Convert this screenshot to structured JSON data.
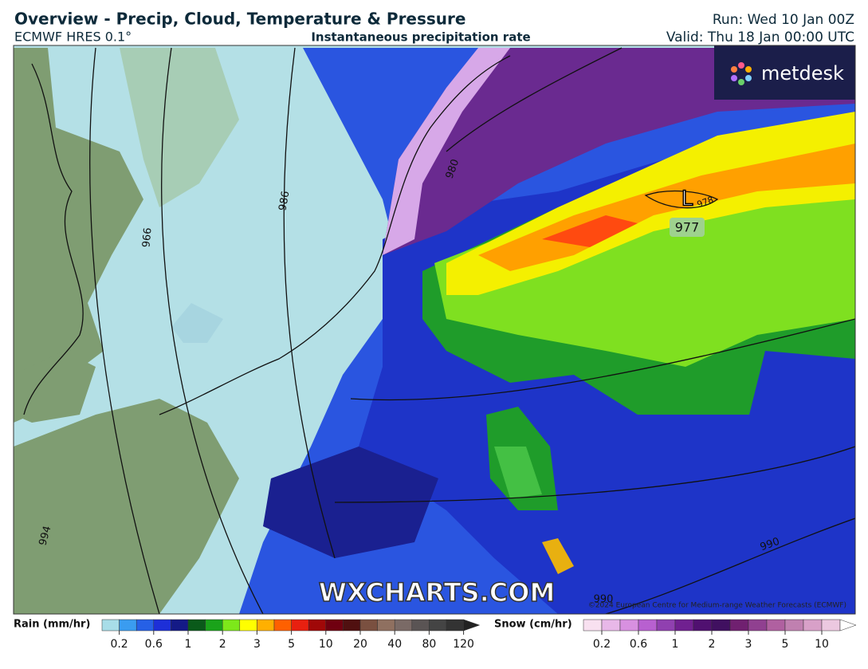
{
  "header": {
    "title": "Overview - Precip, Cloud, Temperature & Pressure",
    "model": "ECMWF HRES 0.1°",
    "panel": "Instantaneous precipitation rate",
    "run": "Run: Wed 10 Jan 00Z",
    "valid": "Valid: Thu 18 Jan 00:00 UTC"
  },
  "map": {
    "logo": "metdesk",
    "low_symbol": "L",
    "low_value": "977",
    "watermark": "WXCHARTS.COM",
    "copyright": "©2024 European Centre for Medium-range Weather Forecasts (ECMWF)",
    "isobars": [
      "986",
      "980",
      "966",
      "994",
      "990",
      "990",
      "978"
    ]
  },
  "legend": {
    "rain": {
      "label": "Rain (mm/hr)",
      "ticks": [
        "0.2",
        "0.6",
        "1",
        "2",
        "3",
        "5",
        "10",
        "20",
        "40",
        "80",
        "120"
      ]
    },
    "snow": {
      "label": "Snow (cm/hr)",
      "ticks": [
        "0.2",
        "0.6",
        "1",
        "2",
        "3",
        "5",
        "10"
      ]
    }
  }
}
